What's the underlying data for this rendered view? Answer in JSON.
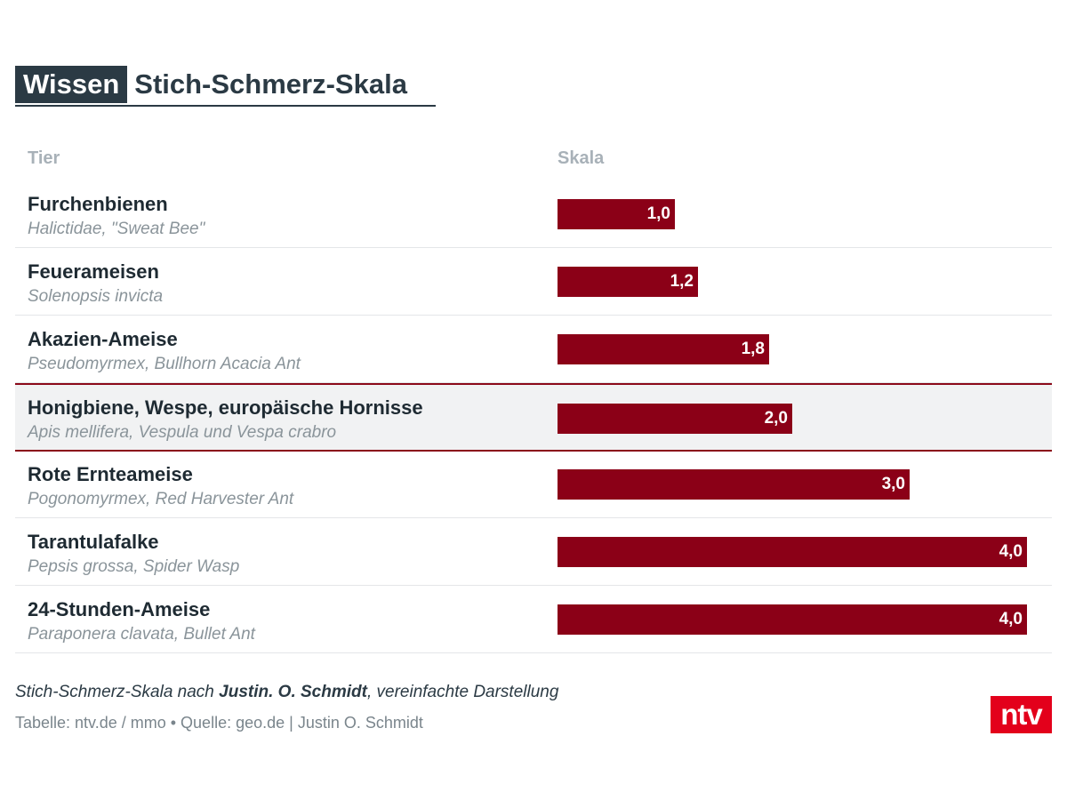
{
  "header": {
    "kicker": "Wissen",
    "title": "Stich-Schmerz-Skala"
  },
  "columns": {
    "animal": "Tier",
    "scale": "Skala"
  },
  "chart_data": {
    "type": "bar",
    "orientation": "horizontal",
    "title": "Stich-Schmerz-Skala",
    "xlim": [
      0,
      4
    ],
    "highlight_index": 3,
    "bar_color": "#8b0017",
    "categories": [
      "Furchenbienen",
      "Feuerameisen",
      "Akazien-Ameise",
      "Honigbiene, Wespe, europäische Hornisse",
      "Rote Ernteameise",
      "Tarantulafalke",
      "24-Stunden-Ameise"
    ],
    "subtitles": [
      "Halictidae, \"Sweat Bee\"",
      "Solenopsis invicta",
      "Pseudomyrmex, Bullhorn Acacia Ant",
      "Apis mellifera, Vespula und Vespa crabro",
      "Pogonomyrmex, Red Harvester Ant",
      "Pepsis grossa, Spider Wasp",
      "Paraponera clavata, Bullet Ant"
    ],
    "values": [
      1.0,
      1.2,
      1.8,
      2.0,
      3.0,
      4.0,
      4.0
    ],
    "value_labels": [
      "1,0",
      "1,2",
      "1,8",
      "2,0",
      "3,0",
      "4,0",
      "4,0"
    ]
  },
  "footer": {
    "note_prefix": "Stich-Schmerz-Skala nach ",
    "note_author": "Justin. O. Schmidt",
    "note_suffix": ", vereinfachte Darstellung",
    "source": "Tabelle: ntv.de / mmo • Quelle: geo.de | Justin O. Schmidt"
  },
  "logo": {
    "text": "ntv",
    "color": "#e3001b"
  }
}
